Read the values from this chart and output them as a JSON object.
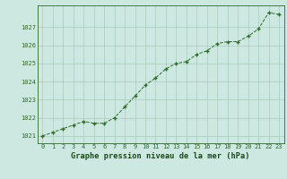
{
  "x": [
    0,
    1,
    2,
    3,
    4,
    5,
    6,
    7,
    8,
    9,
    10,
    11,
    12,
    13,
    14,
    15,
    16,
    17,
    18,
    19,
    20,
    21,
    22,
    23
  ],
  "y": [
    1021.0,
    1021.2,
    1021.4,
    1021.6,
    1021.8,
    1021.7,
    1021.7,
    1022.0,
    1022.6,
    1023.2,
    1023.8,
    1024.2,
    1024.7,
    1025.0,
    1025.1,
    1025.5,
    1025.7,
    1026.1,
    1026.2,
    1026.2,
    1026.5,
    1026.9,
    1027.8,
    1027.7
  ],
  "line_color": "#2d6a2d",
  "marker": "+",
  "bg_color": "#cce8e0",
  "grid_color": "#aaccbb",
  "title": "Graphe pression niveau de la mer (hPa)",
  "title_color": "#1a4a1a",
  "ylabel_vals": [
    1021,
    1022,
    1023,
    1024,
    1025,
    1026,
    1027
  ],
  "ylim": [
    1020.6,
    1028.2
  ],
  "xlim": [
    -0.5,
    23.5
  ],
  "tick_color": "#2d6a2d",
  "axis_color": "#2d6a2d",
  "title_fontsize": 6.2,
  "tick_fontsize": 5.0
}
